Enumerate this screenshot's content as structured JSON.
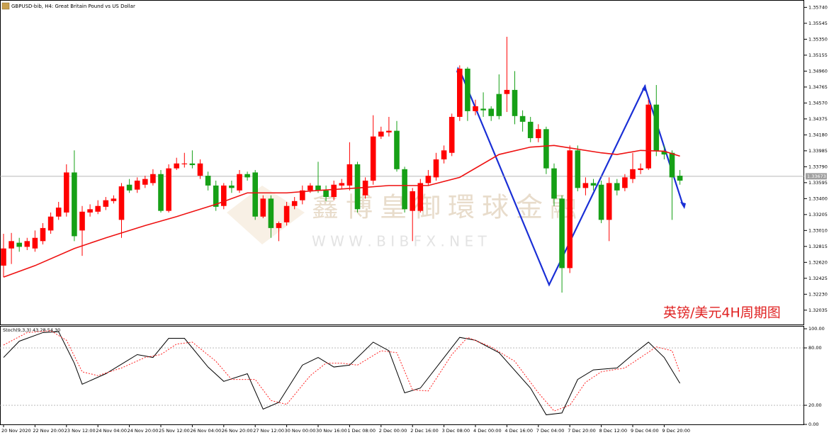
{
  "chart_data": {
    "type": "candlestick",
    "title": "GBPUSD-bib, H4:  Great Britain Pound vs US Dollar",
    "annotation": "英镑/美元4H周期图",
    "watermark": [
      "鑫博皇御環球金融",
      "W W W . B I B F X . N E T"
    ],
    "categories": [
      "20 Nov 2020",
      null,
      null,
      null,
      "22 Nov 20:00",
      null,
      null,
      null,
      "23 Nov 12:00",
      null,
      null,
      null,
      "24 Nov 04:00",
      null,
      null,
      null,
      "24 Nov 20:00",
      null,
      null,
      null,
      "25 Nov 12:00",
      null,
      null,
      null,
      "26 Nov 04:00",
      null,
      null,
      null,
      "26 Nov 20:00",
      null,
      null,
      null,
      "27 Nov 12:00",
      null,
      null,
      null,
      "30 Nov 00:00",
      null,
      null,
      null,
      "30 Nov 16:00",
      null,
      null,
      null,
      "1 Dec 08:00",
      null,
      null,
      null,
      "2 Dec 00:00",
      null,
      null,
      null,
      "2 Dec 16:00",
      null,
      null,
      null,
      "3 Dec 08:00",
      null,
      null,
      null,
      "4 Dec 00:00",
      null,
      null,
      null,
      "4 Dec 16:00",
      null,
      null,
      null,
      "7 Dec 04:00",
      null,
      null,
      null,
      "7 Dec 20:00",
      null,
      null,
      null,
      "8 Dec 12:00",
      null,
      null,
      null,
      "9 Dec 04:00",
      null,
      null,
      null,
      "9 Dec 20:00",
      null,
      null
    ],
    "open": [
      1.3258,
      1.3279,
      1.3286,
      1.3281,
      1.3279,
      1.3288,
      1.3301,
      1.3318,
      1.3323,
      1.3372,
      1.3301,
      1.3323,
      1.3324,
      1.333,
      1.3337,
      1.3314,
      1.3357,
      1.3351,
      1.3357,
      1.3359,
      1.337,
      1.3325,
      1.3377,
      1.3382,
      1.3383,
      1.3368,
      1.3368,
      1.3356,
      1.3331,
      1.3356,
      1.335,
      1.337,
      1.3372,
      1.3318,
      1.334,
      1.3304,
      1.3311,
      1.3331,
      1.3338,
      1.335,
      1.3356,
      1.335,
      1.3342,
      1.3356,
      1.3356,
      1.3382,
      1.3344,
      1.3362,
      1.3416,
      1.3421,
      1.3423,
      1.3376,
      1.3325,
      1.3325,
      1.3359,
      1.3366,
      1.3388,
      1.3396,
      1.344,
      1.3499,
      1.3447,
      1.345,
      1.345,
      1.3468,
      1.3468,
      1.3473,
      1.3441,
      1.3434,
      1.3414,
      1.3425,
      1.3377,
      1.334,
      1.3255,
      1.3399,
      1.3353,
      1.3359,
      1.3357,
      1.3314,
      1.3359,
      1.3353,
      1.3364,
      1.3375,
      1.3377,
      1.3455,
      1.3398,
      1.3396,
      1.3368
    ],
    "high": [
      1.3297,
      1.3298,
      1.3292,
      1.3292,
      1.3301,
      1.331,
      1.3323,
      1.3336,
      1.3382,
      1.3399,
      1.3331,
      1.3333,
      1.3338,
      1.3342,
      1.3344,
      1.3359,
      1.3364,
      1.3366,
      1.3368,
      1.3376,
      1.3375,
      1.3382,
      1.339,
      1.3396,
      1.3399,
      1.3388,
      1.3373,
      1.3362,
      1.3359,
      1.3362,
      1.3375,
      1.3373,
      1.3375,
      1.3344,
      1.3344,
      1.3312,
      1.3336,
      1.3342,
      1.3356,
      1.3359,
      1.3385,
      1.3356,
      1.3362,
      1.3364,
      1.3409,
      1.3385,
      1.3366,
      1.3442,
      1.3428,
      1.344,
      1.3435,
      1.3379,
      1.3353,
      1.3364,
      1.3375,
      1.3396,
      1.3405,
      1.3444,
      1.3503,
      1.3501,
      1.3461,
      1.347,
      1.3453,
      1.3492,
      1.3538,
      1.3496,
      1.3448,
      1.344,
      1.3431,
      1.3428,
      1.3383,
      1.3344,
      1.3405,
      1.3405,
      1.3366,
      1.3364,
      1.3362,
      1.3366,
      1.3364,
      1.337,
      1.3396,
      1.3383,
      1.3461,
      1.3479,
      1.3405,
      1.3399,
      1.3375
    ],
    "low": [
      1.3244,
      1.326,
      1.3275,
      1.3277,
      1.3275,
      1.3284,
      1.3297,
      1.3314,
      1.3318,
      1.3288,
      1.327,
      1.3318,
      1.3321,
      1.3326,
      1.3334,
      1.3292,
      1.3347,
      1.3347,
      1.3353,
      1.3356,
      1.3323,
      1.3323,
      1.3375,
      1.3378,
      1.3377,
      1.3364,
      1.335,
      1.3325,
      1.3327,
      1.3347,
      1.3347,
      1.3362,
      1.3314,
      1.3316,
      1.3292,
      1.3288,
      1.3307,
      1.3327,
      1.3333,
      1.3347,
      1.3347,
      1.3337,
      1.3338,
      1.3352,
      1.335,
      1.3323,
      1.334,
      1.3357,
      1.3413,
      1.3416,
      1.3373,
      1.3323,
      1.3288,
      1.3323,
      1.3356,
      1.3362,
      1.3383,
      1.3392,
      1.3435,
      1.3435,
      1.3442,
      1.344,
      1.3435,
      1.3437,
      1.3446,
      1.3431,
      1.3422,
      1.3409,
      1.3409,
      1.337,
      1.3331,
      1.3225,
      1.3249,
      1.3349,
      1.3344,
      1.335,
      1.331,
      1.3288,
      1.3344,
      1.3349,
      1.3359,
      1.337,
      1.3375,
      1.3392,
      1.3388,
      1.3314,
      1.3357
    ],
    "close": [
      1.3279,
      1.3288,
      1.3281,
      1.3288,
      1.3292,
      1.3304,
      1.3318,
      1.3329,
      1.3372,
      1.3294,
      1.3324,
      1.3327,
      1.3331,
      1.3338,
      1.334,
      1.3355,
      1.335,
      1.3362,
      1.3364,
      1.337,
      1.3325,
      1.3377,
      1.3383,
      1.3383,
      1.3381,
      1.3383,
      1.3356,
      1.333,
      1.3356,
      1.3353,
      1.337,
      1.3366,
      1.3318,
      1.334,
      1.3304,
      1.331,
      1.3331,
      1.3337,
      1.335,
      1.3356,
      1.335,
      1.3342,
      1.3357,
      1.3359,
      1.3382,
      1.3327,
      1.3362,
      1.3416,
      1.3422,
      1.3423,
      1.3376,
      1.3327,
      1.3349,
      1.3359,
      1.3368,
      1.3388,
      1.3399,
      1.344,
      1.3499,
      1.3447,
      1.3453,
      1.3448,
      1.3441,
      1.3441,
      1.3473,
      1.3441,
      1.3434,
      1.3414,
      1.3425,
      1.3377,
      1.334,
      1.3255,
      1.3399,
      1.3353,
      1.3359,
      1.3356,
      1.3314,
      1.3359,
      1.335,
      1.3366,
      1.3376,
      1.3377,
      1.3455,
      1.3398,
      1.3394,
      1.3366,
      1.3362
    ],
    "up_color": "#ff0000",
    "down_color": "#16a016",
    "ylim": [
      1.3186,
      1.3583
    ],
    "yticks": [
      {
        "value": 1.3574,
        "label": "1.35740"
      },
      {
        "value": 1.35545,
        "label": "1.35545"
      },
      {
        "value": 1.3535,
        "label": "1.35350"
      },
      {
        "value": 1.35155,
        "label": "1.35155"
      },
      {
        "value": 1.3496,
        "label": "1.34960"
      },
      {
        "value": 1.34765,
        "label": "1.34765"
      },
      {
        "value": 1.3457,
        "label": "1.34570"
      },
      {
        "value": 1.34375,
        "label": "1.34375"
      },
      {
        "value": 1.3418,
        "label": "1.34180"
      },
      {
        "value": 1.33985,
        "label": "1.33985"
      },
      {
        "value": 1.3379,
        "label": "1.33790"
      },
      {
        "value": 1.33595,
        "label": "1.33595"
      },
      {
        "value": 1.334,
        "label": "1.33400"
      },
      {
        "value": 1.33205,
        "label": "1.33205"
      },
      {
        "value": 1.3301,
        "label": "1.33010"
      },
      {
        "value": 1.32815,
        "label": "1.32815"
      },
      {
        "value": 1.3262,
        "label": "1.32620"
      },
      {
        "value": 1.32425,
        "label": "1.32425"
      },
      {
        "value": 1.3223,
        "label": "1.32230"
      },
      {
        "value": 1.32035,
        "label": "1.32035"
      }
    ],
    "last_price": {
      "value": 1.33673,
      "label": "1.33673"
    },
    "grid": false,
    "ma": {
      "color": "#ee1111",
      "x": [
        0,
        4,
        9,
        13,
        18,
        22,
        27,
        31,
        36,
        40,
        45,
        49,
        54,
        58,
        63,
        67,
        70,
        72,
        76,
        78,
        81,
        84,
        86
      ],
      "values": [
        1.3244,
        1.3258,
        1.3279,
        1.3292,
        1.3307,
        1.3318,
        1.3333,
        1.3347,
        1.3347,
        1.335,
        1.3353,
        1.3356,
        1.3356,
        1.3366,
        1.3394,
        1.3403,
        1.3405,
        1.3402,
        1.3396,
        1.3394,
        1.3399,
        1.3398,
        1.3392
      ]
    },
    "stochastic": {
      "label": "Stoch(9,3,3) 43.28 54.30",
      "ylim": [
        -0.7,
        103
      ],
      "yticks": [
        {
          "value": 100,
          "label": "100.00"
        },
        {
          "value": 80,
          "label": "80.00"
        },
        {
          "value": 20,
          "label": "20.00"
        },
        {
          "value": 0,
          "label": "0.00"
        }
      ],
      "main": {
        "color": "#000000",
        "x": [
          0,
          2,
          5,
          7,
          9,
          10,
          13,
          17,
          19,
          21,
          23,
          26,
          28,
          31,
          33,
          35,
          38,
          40,
          42,
          44,
          47,
          49,
          51,
          53,
          58,
          60,
          63,
          67,
          69,
          71,
          73,
          75,
          78,
          80,
          82,
          84,
          86
        ],
        "values": [
          70,
          87,
          96,
          97,
          64,
          42,
          53,
          73,
          70,
          90,
          90,
          60,
          45,
          53,
          16,
          23,
          62,
          70,
          60,
          62,
          86,
          77,
          33,
          38,
          91,
          88,
          75,
          38,
          10,
          12,
          47,
          57,
          59,
          73,
          86,
          70,
          43
        ]
      },
      "signal": {
        "color": "#ff2020",
        "x": [
          0,
          3,
          6,
          8,
          10,
          12,
          15,
          18,
          20,
          22,
          24,
          27,
          29,
          32,
          34,
          36,
          39,
          41,
          43,
          45,
          48,
          50,
          52,
          54,
          57,
          59,
          62,
          65,
          68,
          70,
          72,
          74,
          76,
          79,
          81,
          83,
          85,
          86
        ],
        "values": [
          83,
          96,
          98,
          88,
          55,
          51,
          59,
          70,
          73,
          84,
          86,
          66,
          47,
          47,
          25,
          21,
          51,
          64,
          64,
          62,
          77,
          75,
          36,
          35,
          73,
          91,
          81,
          66,
          33,
          14,
          20,
          44,
          55,
          59,
          70,
          81,
          77,
          54
        ]
      }
    }
  }
}
